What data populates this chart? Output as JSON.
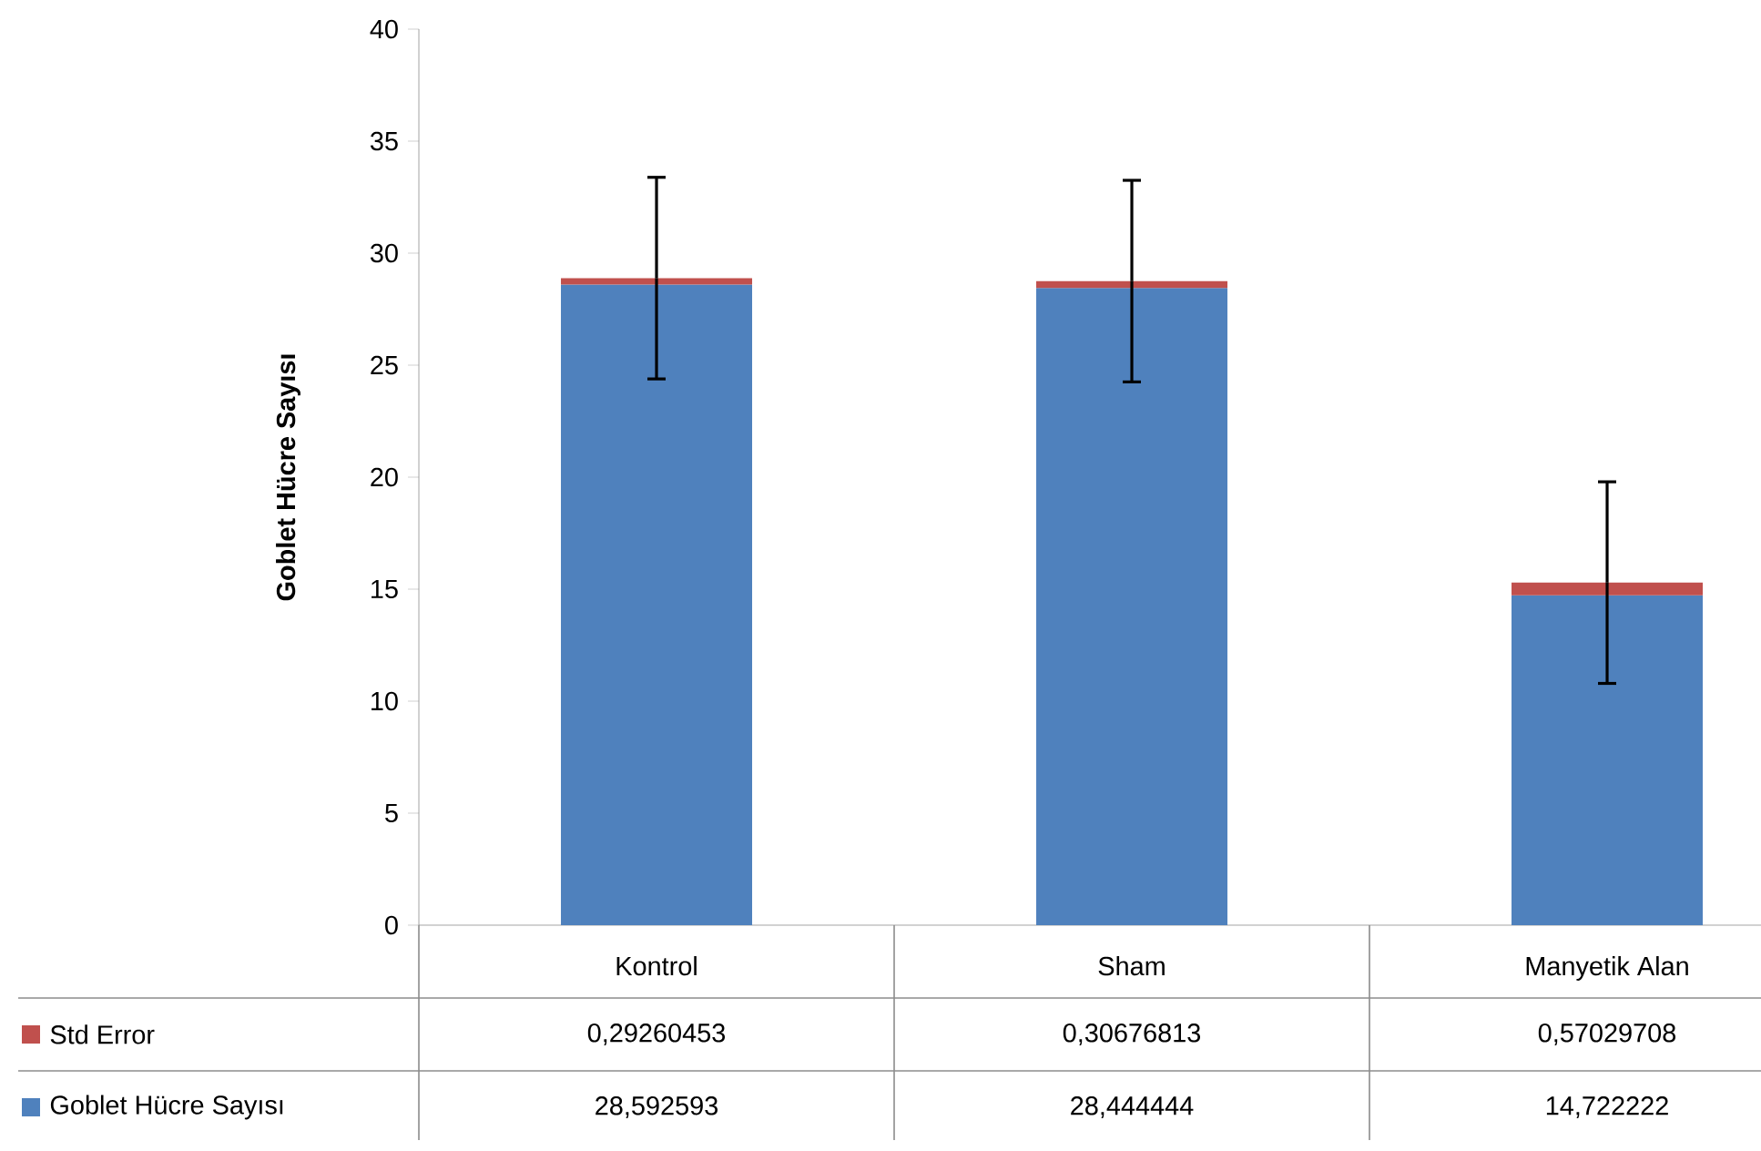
{
  "chart_data": {
    "type": "bar",
    "stacked": true,
    "ylabel": "Goblet Hücre Sayısı",
    "categories": [
      "Kontrol",
      "Sham",
      "Manyetik Alan"
    ],
    "series": [
      {
        "name": "Goblet Hücre Sayısı",
        "color": "#4f81bd",
        "values": [
          28.592593,
          28.444444,
          14.722222
        ],
        "value_labels": [
          "28,592593",
          "28,444444",
          "14,722222"
        ]
      },
      {
        "name": "Std Error",
        "color": "#c0504d",
        "values": [
          0.29260453,
          0.30676813,
          0.57029708
        ],
        "value_labels": [
          "0,29260453",
          "0,30676813",
          "0,57029708"
        ],
        "errors": [
          4.5,
          4.5,
          4.5
        ]
      }
    ],
    "legend": "bottom left",
    "ylim": [
      0,
      40
    ],
    "yticks": [
      0,
      5,
      10,
      15,
      20,
      25,
      30,
      35,
      40
    ]
  }
}
